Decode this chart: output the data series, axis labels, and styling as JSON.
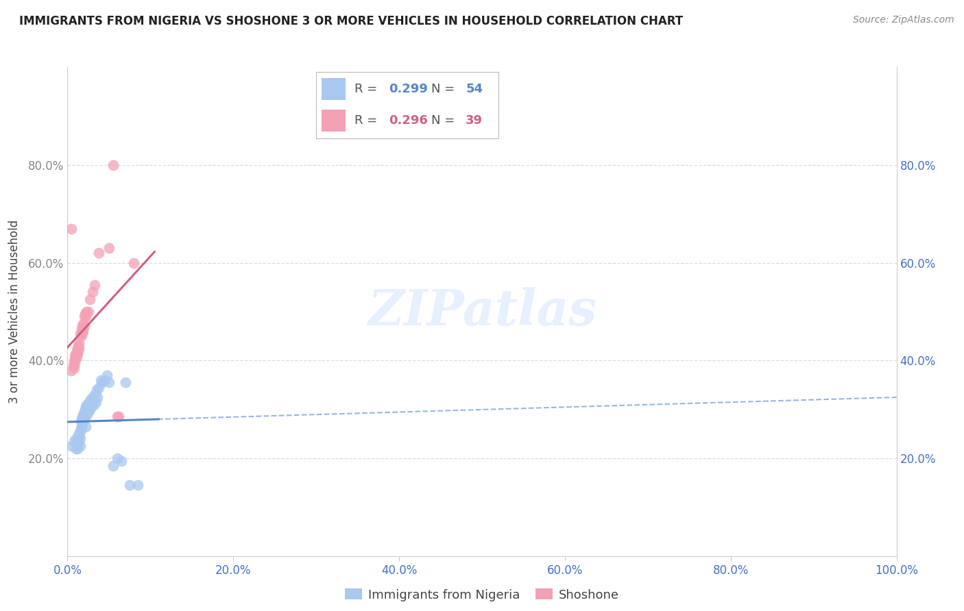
{
  "title": "IMMIGRANTS FROM NIGERIA VS SHOSHONE 3 OR MORE VEHICLES IN HOUSEHOLD CORRELATION CHART",
  "source": "Source: ZipAtlas.com",
  "ylabel": "3 or more Vehicles in Household",
  "xlim": [
    0,
    1.0
  ],
  "ylim": [
    0,
    1.0
  ],
  "xticks": [
    0.0,
    0.2,
    0.4,
    0.6,
    0.8,
    1.0
  ],
  "yticks": [
    0.2,
    0.4,
    0.6,
    0.8
  ],
  "blue_color": "#A8C8F0",
  "pink_color": "#F4A0B5",
  "blue_line_color": "#5585C8",
  "pink_line_color": "#D06080",
  "legend_R_blue": "0.299",
  "legend_N_blue": "54",
  "legend_R_pink": "0.296",
  "legend_N_pink": "39",
  "legend_label_blue": "Immigrants from Nigeria",
  "legend_label_pink": "Shoshone",
  "watermark": "ZIPatlas",
  "blue_scatter": [
    [
      0.005,
      0.225
    ],
    [
      0.008,
      0.235
    ],
    [
      0.01,
      0.23
    ],
    [
      0.01,
      0.22
    ],
    [
      0.01,
      0.24
    ],
    [
      0.011,
      0.225
    ],
    [
      0.012,
      0.235
    ],
    [
      0.012,
      0.22
    ],
    [
      0.013,
      0.245
    ],
    [
      0.013,
      0.23
    ],
    [
      0.014,
      0.25
    ],
    [
      0.014,
      0.235
    ],
    [
      0.015,
      0.255
    ],
    [
      0.015,
      0.24
    ],
    [
      0.015,
      0.225
    ],
    [
      0.016,
      0.275
    ],
    [
      0.016,
      0.26
    ],
    [
      0.017,
      0.28
    ],
    [
      0.017,
      0.265
    ],
    [
      0.018,
      0.285
    ],
    [
      0.018,
      0.27
    ],
    [
      0.019,
      0.29
    ],
    [
      0.019,
      0.275
    ],
    [
      0.02,
      0.295
    ],
    [
      0.02,
      0.28
    ],
    [
      0.021,
      0.3
    ],
    [
      0.021,
      0.285
    ],
    [
      0.022,
      0.305
    ],
    [
      0.022,
      0.265
    ],
    [
      0.023,
      0.31
    ],
    [
      0.024,
      0.29
    ],
    [
      0.025,
      0.295
    ],
    [
      0.026,
      0.315
    ],
    [
      0.027,
      0.3
    ],
    [
      0.028,
      0.32
    ],
    [
      0.029,
      0.305
    ],
    [
      0.03,
      0.325
    ],
    [
      0.032,
      0.31
    ],
    [
      0.033,
      0.33
    ],
    [
      0.034,
      0.315
    ],
    [
      0.035,
      0.34
    ],
    [
      0.036,
      0.325
    ],
    [
      0.038,
      0.345
    ],
    [
      0.04,
      0.36
    ],
    [
      0.042,
      0.355
    ],
    [
      0.045,
      0.36
    ],
    [
      0.048,
      0.37
    ],
    [
      0.05,
      0.355
    ],
    [
      0.055,
      0.185
    ],
    [
      0.06,
      0.2
    ],
    [
      0.065,
      0.195
    ],
    [
      0.07,
      0.355
    ],
    [
      0.075,
      0.145
    ],
    [
      0.085,
      0.145
    ]
  ],
  "pink_scatter": [
    [
      0.005,
      0.38
    ],
    [
      0.007,
      0.39
    ],
    [
      0.008,
      0.4
    ],
    [
      0.008,
      0.385
    ],
    [
      0.009,
      0.41
    ],
    [
      0.009,
      0.395
    ],
    [
      0.01,
      0.415
    ],
    [
      0.01,
      0.405
    ],
    [
      0.011,
      0.42
    ],
    [
      0.011,
      0.41
    ],
    [
      0.012,
      0.425
    ],
    [
      0.012,
      0.415
    ],
    [
      0.013,
      0.43
    ],
    [
      0.013,
      0.42
    ],
    [
      0.014,
      0.435
    ],
    [
      0.014,
      0.425
    ],
    [
      0.015,
      0.455
    ],
    [
      0.016,
      0.45
    ],
    [
      0.017,
      0.465
    ],
    [
      0.018,
      0.47
    ],
    [
      0.018,
      0.455
    ],
    [
      0.019,
      0.475
    ],
    [
      0.019,
      0.46
    ],
    [
      0.02,
      0.49
    ],
    [
      0.02,
      0.47
    ],
    [
      0.021,
      0.495
    ],
    [
      0.022,
      0.49
    ],
    [
      0.023,
      0.5
    ],
    [
      0.025,
      0.5
    ],
    [
      0.027,
      0.525
    ],
    [
      0.03,
      0.54
    ],
    [
      0.033,
      0.555
    ],
    [
      0.038,
      0.62
    ],
    [
      0.05,
      0.63
    ],
    [
      0.055,
      0.8
    ],
    [
      0.06,
      0.285
    ],
    [
      0.062,
      0.285
    ],
    [
      0.08,
      0.6
    ],
    [
      0.005,
      0.67
    ]
  ],
  "grid_color": "#DDDDDD",
  "spine_color": "#CCCCCC",
  "title_color": "#222222",
  "tick_color_x": "#4472C4",
  "tick_color_y_right": "#4472C4",
  "tick_color_y_left": "#888888"
}
